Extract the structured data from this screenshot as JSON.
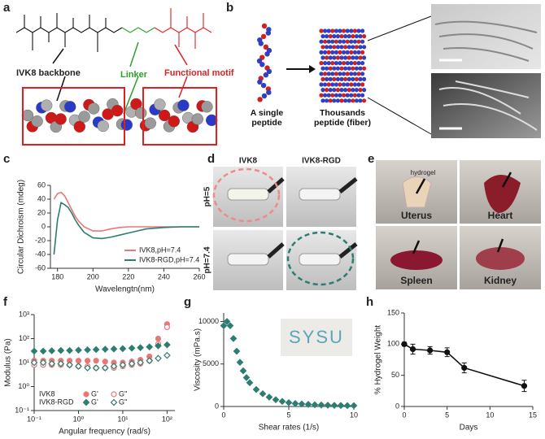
{
  "panel_labels": [
    "a",
    "b",
    "c",
    "d",
    "e",
    "f",
    "g",
    "h"
  ],
  "panel_a": {
    "backbone": "IVK8 backbone",
    "linker": "Linker",
    "motif": "Functional motif"
  },
  "panel_b": {
    "single": "A single peptide",
    "fiber": "Thousands peptide (fiber)"
  },
  "panel_d": {
    "columns": [
      "IVK8",
      "IVK8-RGD"
    ],
    "rows": [
      "pH=5",
      "pH=7.4"
    ]
  },
  "panel_e": {
    "note": "hydrogel",
    "organs": [
      "Uterus",
      "Heart",
      "Spleen",
      "Kidney"
    ]
  },
  "inset_g": "SYSU",
  "chart_data": [
    {
      "type": "line",
      "x_label": "Wavelengtn(nm)",
      "y_label": "Circular Dichroism (mdeg)",
      "x": [
        178,
        180,
        182,
        184,
        186,
        188,
        190,
        192,
        195,
        200,
        205,
        210,
        215,
        220,
        225,
        230,
        240,
        250,
        260
      ],
      "series": [
        {
          "name": "IVK8,pH=7.4",
          "color": "#e87878",
          "values": [
            40,
            48,
            50,
            45,
            35,
            25,
            15,
            8,
            0,
            -6,
            -6,
            -3,
            -1,
            0,
            0,
            0,
            0,
            0,
            0
          ]
        },
        {
          "name": "IVK8-RGD,pH=7.4",
          "color": "#2e7d73",
          "values": [
            -40,
            10,
            35,
            32,
            28,
            20,
            10,
            2,
            -8,
            -16,
            -17,
            -15,
            -12,
            -9,
            -6,
            -3,
            -1,
            0,
            0
          ]
        }
      ],
      "xlim": [
        176,
        260
      ],
      "xticks": [
        180,
        200,
        220,
        240,
        260
      ],
      "ylim": [
        -60,
        60
      ],
      "yticks": [
        -60,
        -40,
        -20,
        0,
        20,
        40,
        60
      ],
      "legend": "lower right"
    },
    {
      "type": "scatter",
      "x_label": "Angular frequency (rad/s)",
      "y_label": "Modulus (Pa)",
      "log_x": true,
      "log_y": true,
      "x": [
        0.1,
        0.16,
        0.25,
        0.4,
        0.63,
        1,
        1.6,
        2.5,
        4,
        6.3,
        10,
        16,
        25,
        40,
        63,
        100
      ],
      "legend_rows": [
        "IVK8",
        "IVK8-RGD"
      ],
      "series": [
        {
          "name": "G'",
          "color": "#e87878",
          "marker": "circle",
          "filled": true,
          "values": [
            12,
            12,
            12,
            12,
            12,
            12,
            12,
            12,
            11,
            10,
            10,
            11,
            13,
            18,
            100,
            400
          ]
        },
        {
          "name": "G''",
          "color": "#e87878",
          "marker": "circle",
          "filled": false,
          "values": [
            8,
            8,
            8,
            8,
            8,
            7,
            7,
            6,
            6,
            6,
            7,
            8,
            9,
            12,
            60,
            300
          ]
        },
        {
          "name": "G'",
          "color": "#2e7d73",
          "marker": "diamond",
          "filled": true,
          "values": [
            30,
            30,
            31,
            32,
            32,
            33,
            34,
            35,
            36,
            37,
            38,
            40,
            42,
            45,
            50,
            55
          ]
        },
        {
          "name": "G''",
          "color": "#2e7d73",
          "marker": "diamond",
          "filled": false,
          "values": [
            10,
            10,
            9,
            9,
            8,
            7,
            6,
            6,
            6,
            7,
            8,
            9,
            10,
            12,
            15,
            20
          ]
        }
      ],
      "xlim": [
        0.1,
        150
      ],
      "xticks": [
        {
          "value": 0.1,
          "label": "10⁻¹"
        },
        {
          "value": 1,
          "label": "10⁰"
        },
        {
          "value": 10,
          "label": "10¹"
        },
        {
          "value": 100,
          "label": "10²"
        }
      ],
      "ylim": [
        0.1,
        1000
      ],
      "yticks": [
        {
          "value": 0.1,
          "label": "10⁻¹"
        },
        {
          "value": 1,
          "label": "10⁰"
        },
        {
          "value": 10,
          "label": "10¹"
        },
        {
          "value": 100,
          "label": "10²"
        },
        {
          "value": 1000,
          "label": "10³"
        }
      ],
      "legend": "lower left"
    },
    {
      "type": "scatter",
      "x_label": "Shear rates (1/s)",
      "y_label": "Viscosity (mPa.s)",
      "x": [
        0,
        0.25,
        0.5,
        0.75,
        1,
        1.25,
        1.5,
        1.75,
        2,
        2.5,
        3,
        3.5,
        4,
        4.5,
        5,
        5.5,
        6,
        6.5,
        7,
        7.5,
        8,
        8.5,
        9,
        9.5,
        10
      ],
      "series": [
        {
          "color": "#2e7d73",
          "marker": "diamond",
          "filled": true,
          "values": [
            9500,
            10000,
            9500,
            8000,
            6500,
            5200,
            4200,
            3400,
            2800,
            2000,
            1500,
            1100,
            800,
            600,
            450,
            350,
            300,
            250,
            200,
            180,
            150,
            130,
            120,
            100,
            100
          ]
        }
      ],
      "xlim": [
        0,
        10
      ],
      "xticks": [
        0,
        5,
        10
      ],
      "ylim": [
        0,
        11000
      ],
      "yticks": [
        0,
        5000,
        10000
      ]
    },
    {
      "type": "line",
      "x_label": "Days",
      "y_label": "% Hydrogel Weight",
      "x": [
        0,
        1,
        3,
        5,
        7,
        14
      ],
      "series": [
        {
          "color": "#111111",
          "marker": "circle",
          "values": [
            100,
            92,
            90,
            87,
            62,
            33
          ],
          "errors": [
            3,
            8,
            6,
            7,
            8,
            9
          ]
        }
      ],
      "xlim": [
        0,
        15
      ],
      "xticks": [
        0,
        5,
        10,
        15
      ],
      "ylim": [
        0,
        150
      ],
      "yticks": [
        0,
        50,
        100,
        150
      ]
    }
  ]
}
